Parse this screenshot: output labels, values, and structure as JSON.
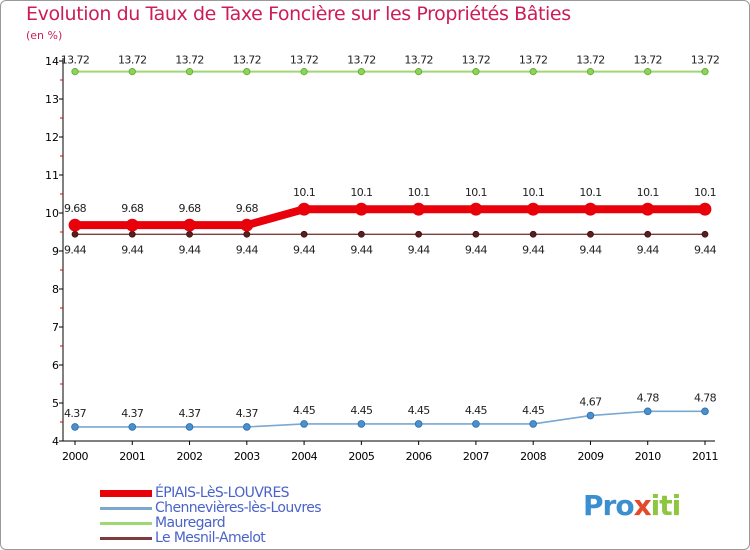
{
  "title": "Evolution du Taux de Taxe Foncière sur les Propriétés Bâties",
  "unit_label": "(en %)",
  "brand": {
    "p": "Pro",
    "x": "x",
    "i": "iti"
  },
  "chart_data": {
    "type": "line",
    "title": "Evolution du Taux de Taxe Foncière sur les Propriétés Bâties",
    "ylabel": "(en %)",
    "x": [
      "2000",
      "2001",
      "2002",
      "2003",
      "2004",
      "2005",
      "2006",
      "2007",
      "2008",
      "2009",
      "2010",
      "2011"
    ],
    "ylim": [
      4,
      14
    ],
    "yticks": [
      "4",
      "5",
      "6",
      "7",
      "8",
      "9",
      "10",
      "11",
      "12",
      "13",
      "14"
    ],
    "grid": false,
    "legend": "bottom-left",
    "series": [
      {
        "name": "ÉPIAIS-LèS-LOUVRES",
        "color": "#e8000a",
        "values": [
          9.68,
          9.68,
          9.68,
          9.68,
          10.1,
          10.1,
          10.1,
          10.1,
          10.1,
          10.1,
          10.1,
          10.1
        ],
        "labels": [
          "9.68",
          "9.68",
          "9.68",
          "9.68",
          "10.1",
          "10.1",
          "10.1",
          "10.1",
          "10.1",
          "10.1",
          "10.1",
          "10.1"
        ]
      },
      {
        "name": "Chennevières-lès-Louvres",
        "color": "#7aa8d0",
        "values": [
          4.37,
          4.37,
          4.37,
          4.37,
          4.45,
          4.45,
          4.45,
          4.45,
          4.45,
          4.67,
          4.78,
          4.78
        ],
        "labels": [
          "4.37",
          "4.37",
          "4.37",
          "4.37",
          "4.45",
          "4.45",
          "4.45",
          "4.45",
          "4.45",
          "4.67",
          "4.78",
          "4.78"
        ]
      },
      {
        "name": "Mauregard",
        "color": "#9fd873",
        "values": [
          13.72,
          13.72,
          13.72,
          13.72,
          13.72,
          13.72,
          13.72,
          13.72,
          13.72,
          13.72,
          13.72,
          13.72
        ],
        "labels": [
          "13.72",
          "13.72",
          "13.72",
          "13.72",
          "13.72",
          "13.72",
          "13.72",
          "13.72",
          "13.72",
          "13.72",
          "13.72",
          "13.72"
        ]
      },
      {
        "name": "Le Mesnil-Amelot",
        "color": "#7a3c3c",
        "values": [
          9.44,
          9.44,
          9.44,
          9.44,
          9.44,
          9.44,
          9.44,
          9.44,
          9.44,
          9.44,
          9.44,
          9.44
        ],
        "labels": [
          "9.44",
          "9.44",
          "9.44",
          "9.44",
          "9.44",
          "9.44",
          "9.44",
          "9.44",
          "9.44",
          "9.44",
          "9.44",
          "9.44"
        ]
      }
    ]
  }
}
